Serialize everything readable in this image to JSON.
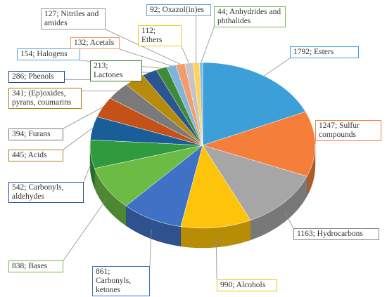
{
  "chart_data": {
    "type": "pie",
    "title": "",
    "series": [
      {
        "slices": [
          {
            "label": "1792; Esters",
            "value": 1792,
            "color": "#3d9fd8",
            "border": "#3aa0dc"
          },
          {
            "label": "1247; Sulfur compounds",
            "value": 1247,
            "color": "#f57e3a",
            "border": "#f47c3c"
          },
          {
            "label": "1163; Hydrocarbons",
            "value": 1163,
            "color": "#a6a6a6",
            "border": "#888888"
          },
          {
            "label": "990; Alcohols",
            "value": 990,
            "color": "#fec40b",
            "border": "#f2c200"
          },
          {
            "label": "861; Carbonyls, ketones",
            "value": 861,
            "color": "#3f72c4",
            "border": "#3f6fc6"
          },
          {
            "label": "838; Bases",
            "value": 838,
            "color": "#6cbb45",
            "border": "#6cb845"
          },
          {
            "label": "542; Carbonyls, aldehydes",
            "value": 542,
            "color": "#2f9a3e",
            "border": "#1e4aa8"
          },
          {
            "label": "445; Acids",
            "value": 445,
            "color": "#1a5e99",
            "border": "#b57a2a"
          },
          {
            "label": "394; Furans",
            "value": 394,
            "color": "#c45218",
            "border": "#777777"
          },
          {
            "label": "341; (Ep)oxides, pyrans, coumarins",
            "value": 341,
            "color": "#7a7a7a",
            "border": "#a87c10"
          },
          {
            "label": "286; Phenols",
            "value": 286,
            "color": "#b88a0c",
            "border": "#1e4a86"
          },
          {
            "label": "213; Lactones",
            "value": 213,
            "color": "#2b5590",
            "border": "#3a7a32"
          },
          {
            "label": "154; Halogens",
            "value": 154,
            "color": "#3f8a36",
            "border": "#4ea6d9"
          },
          {
            "label": "132; Acetals",
            "value": 132,
            "color": "#80b4dd",
            "border": "#f59a66"
          },
          {
            "label": "127; Nitriles and amides",
            "value": 127,
            "color": "#f39c6c",
            "border": "#999999"
          },
          {
            "label": "112; Ethers",
            "value": 112,
            "color": "#c5c5c5",
            "border": "#f5c518"
          },
          {
            "label": "92; Oxazol(in)es",
            "value": 92,
            "color": "#fdd35a",
            "border": "#6aa5d8"
          },
          {
            "label": "44; Anhydrides and phthalides",
            "value": 44,
            "color": "#86bde8",
            "border": "#74b85a"
          }
        ]
      }
    ]
  }
}
